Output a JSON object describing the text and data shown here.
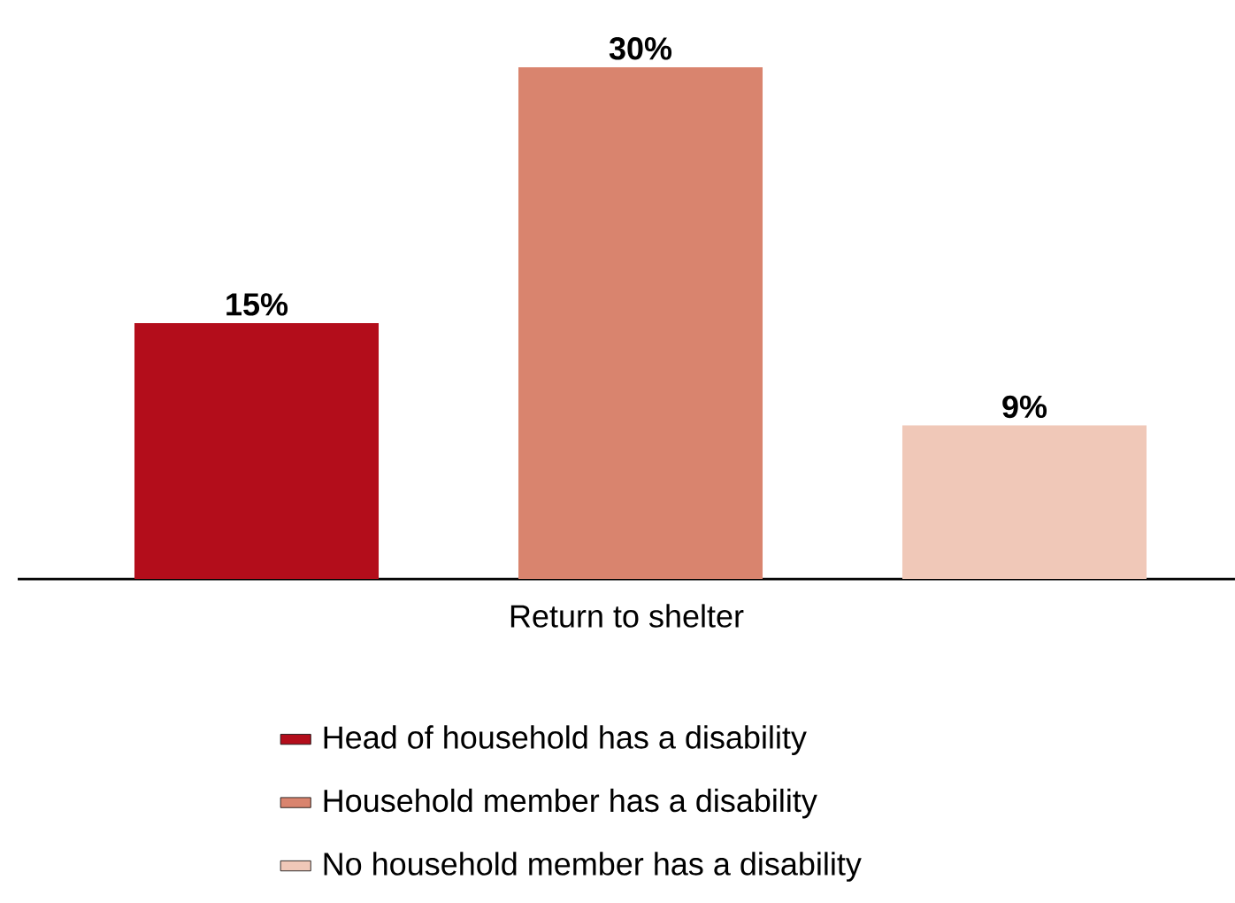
{
  "chart_data": {
    "type": "bar",
    "xlabel": "Return to shelter",
    "categories": [
      null,
      null,
      null
    ],
    "stacked": true,
    "series": [
      {
        "name": "Head of household has a disability",
        "color": "#b30d1b",
        "values": [
          15,
          null,
          null
        ],
        "value_labels": [
          "15%",
          null,
          null
        ]
      },
      {
        "name": "Household member has a disability",
        "color": "#d9846e",
        "values": [
          null,
          30,
          null
        ],
        "value_labels": [
          null,
          "30%",
          null
        ]
      },
      {
        "name": "No household member has a disability",
        "color": "#f0c8b8",
        "values": [
          null,
          null,
          9
        ],
        "value_labels": [
          null,
          null,
          "9%"
        ]
      }
    ],
    "legend": "bottom"
  }
}
